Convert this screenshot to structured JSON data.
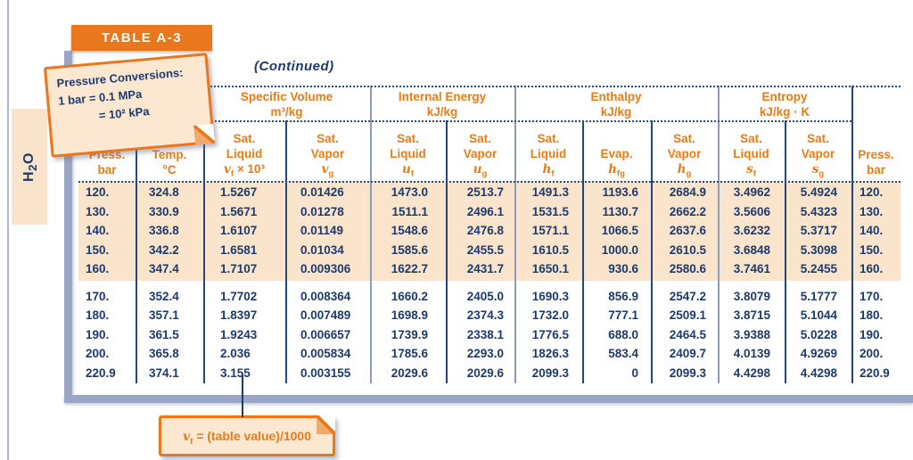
{
  "page": {
    "table_tag": "TABLE A-3",
    "continued": "(Continued)",
    "side_tab": {
      "base": "H",
      "sub": "2",
      "end": "O"
    },
    "sticky_note": {
      "line1": "Pressure Conversions:",
      "line2": "1 bar = 0.1 MPa",
      "line3": "= 10² kPa"
    },
    "footnote": {
      "sym": "v",
      "sub": "f",
      "text": " = (table value)/1000"
    }
  },
  "table": {
    "groups": [
      {
        "label": "Specific Volume",
        "units": "m³/kg"
      },
      {
        "label": "Internal Energy",
        "units": "kJ/kg"
      },
      {
        "label": "Enthalpy",
        "units": "kJ/kg"
      },
      {
        "label": "Entropy",
        "units": "kJ/kg · K"
      }
    ],
    "columns": [
      {
        "line1": "Press.",
        "line2": "bar"
      },
      {
        "line1": "Temp.",
        "line2": "°C"
      },
      {
        "line1": "Sat.",
        "line2": "Liquid",
        "sym": "v",
        "sub": "f",
        "suffix": " × 10³"
      },
      {
        "line1": "Sat.",
        "line2": "Vapor",
        "sym": "v",
        "sub": "g"
      },
      {
        "line1": "Sat.",
        "line2": "Liquid",
        "sym": "u",
        "sub": "f"
      },
      {
        "line1": "Sat.",
        "line2": "Vapor",
        "sym": "u",
        "sub": "g"
      },
      {
        "line1": "Sat.",
        "line2": "Liquid",
        "sym": "h",
        "sub": "f"
      },
      {
        "line1": "",
        "line2": "Evap.",
        "sym": "h",
        "sub": "fg"
      },
      {
        "line1": "Sat.",
        "line2": "Vapor",
        "sym": "h",
        "sub": "g"
      },
      {
        "line1": "Sat.",
        "line2": "Liquid",
        "sym": "s",
        "sub": "f"
      },
      {
        "line1": "Sat.",
        "line2": "Vapor",
        "sym": "s",
        "sub": "g"
      },
      {
        "line1": "Press.",
        "line2": "bar"
      }
    ],
    "row_groups": [
      {
        "highlight": true,
        "rows": [
          [
            "120.",
            "324.8",
            "1.5267",
            "0.01426",
            "1473.0",
            "2513.7",
            "1491.3",
            "1193.6",
            "2684.9",
            "3.4962",
            "5.4924",
            "120."
          ],
          [
            "130.",
            "330.9",
            "1.5671",
            "0.01278",
            "1511.1",
            "2496.1",
            "1531.5",
            "1130.7",
            "2662.2",
            "3.5606",
            "5.4323",
            "130."
          ],
          [
            "140.",
            "336.8",
            "1.6107",
            "0.01149",
            "1548.6",
            "2476.8",
            "1571.1",
            "1066.5",
            "2637.6",
            "3.6232",
            "5.3717",
            "140."
          ],
          [
            "150.",
            "342.2",
            "1.6581",
            "0.01034",
            "1585.6",
            "2455.5",
            "1610.5",
            "1000.0",
            "2610.5",
            "3.6848",
            "5.3098",
            "150."
          ],
          [
            "160.",
            "347.4",
            "1.7107",
            "0.009306",
            "1622.7",
            "2431.7",
            "1650.1",
            "930.6",
            "2580.6",
            "3.7461",
            "5.2455",
            "160."
          ]
        ]
      },
      {
        "highlight": false,
        "rows": [
          [
            "170.",
            "352.4",
            "1.7702",
            "0.008364",
            "1660.2",
            "2405.0",
            "1690.3",
            "856.9",
            "2547.2",
            "3.8079",
            "5.1777",
            "170."
          ],
          [
            "180.",
            "357.1",
            "1.8397",
            "0.007489",
            "1698.9",
            "2374.3",
            "1732.0",
            "777.1",
            "2509.1",
            "3.8715",
            "5.1044",
            "180."
          ],
          [
            "190.",
            "361.5",
            "1.9243",
            "0.006657",
            "1739.9",
            "2338.1",
            "1776.5",
            "688.0",
            "2464.5",
            "3.9388",
            "5.0228",
            "190."
          ],
          [
            "200.",
            "365.8",
            "2.036",
            "0.005834",
            "1785.6",
            "2293.0",
            "1826.3",
            "583.4",
            "2409.7",
            "4.0139",
            "4.9269",
            "200."
          ],
          [
            "220.9",
            "374.1",
            "3.155",
            "0.003155",
            "2029.6",
            "2029.6",
            "2099.3",
            "0",
            "2099.3",
            "4.4298",
            "4.4298",
            "220.9"
          ]
        ]
      }
    ]
  },
  "colors": {
    "orange": "#e8771e",
    "orange_text": "#ea7b17",
    "navy": "#1d3a6d",
    "steel": "#9aa6c7",
    "peach": "#fbe4cc"
  }
}
